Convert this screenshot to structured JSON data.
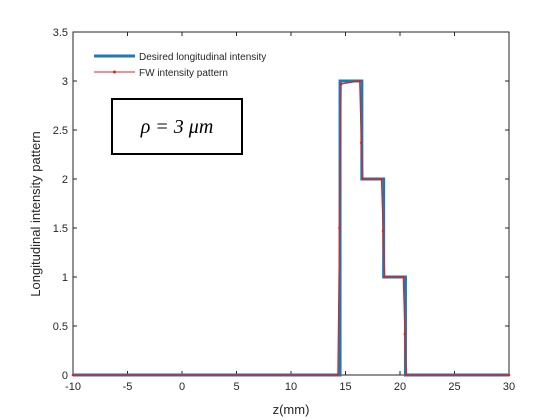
{
  "chart_data": {
    "type": "line",
    "xlabel": "z(mm)",
    "ylabel": "Longitudinal intensity pattern",
    "xlim": [
      -10,
      30
    ],
    "ylim": [
      0,
      3.5
    ],
    "xticks": [
      -10,
      -5,
      0,
      5,
      10,
      15,
      20,
      25,
      30
    ],
    "yticks": [
      0,
      0.5,
      1,
      1.5,
      2,
      2.5,
      3,
      3.5
    ],
    "grid": false,
    "legend_position": "top-left",
    "annotation": "ρ = 3 μm",
    "series": [
      {
        "name": "Desired longitudinal intensity",
        "color": "#1f77b4",
        "x": [
          -10,
          14.5,
          14.5,
          16.5,
          16.5,
          18.5,
          18.5,
          20.5,
          20.5,
          30
        ],
        "y": [
          0,
          0,
          3,
          3,
          2,
          2,
          1,
          1,
          0,
          0
        ]
      },
      {
        "name": "FW intensity pattern",
        "color": "#d62728",
        "x": [
          -10,
          14.3,
          14.45,
          14.6,
          16.3,
          16.45,
          16.6,
          18.3,
          18.45,
          18.6,
          20.3,
          20.45,
          20.6,
          30
        ],
        "y": [
          0,
          0,
          1.5,
          2.97,
          3.0,
          2.37,
          2.0,
          2.0,
          1.47,
          1.0,
          1.0,
          0.42,
          0,
          0
        ]
      }
    ]
  }
}
